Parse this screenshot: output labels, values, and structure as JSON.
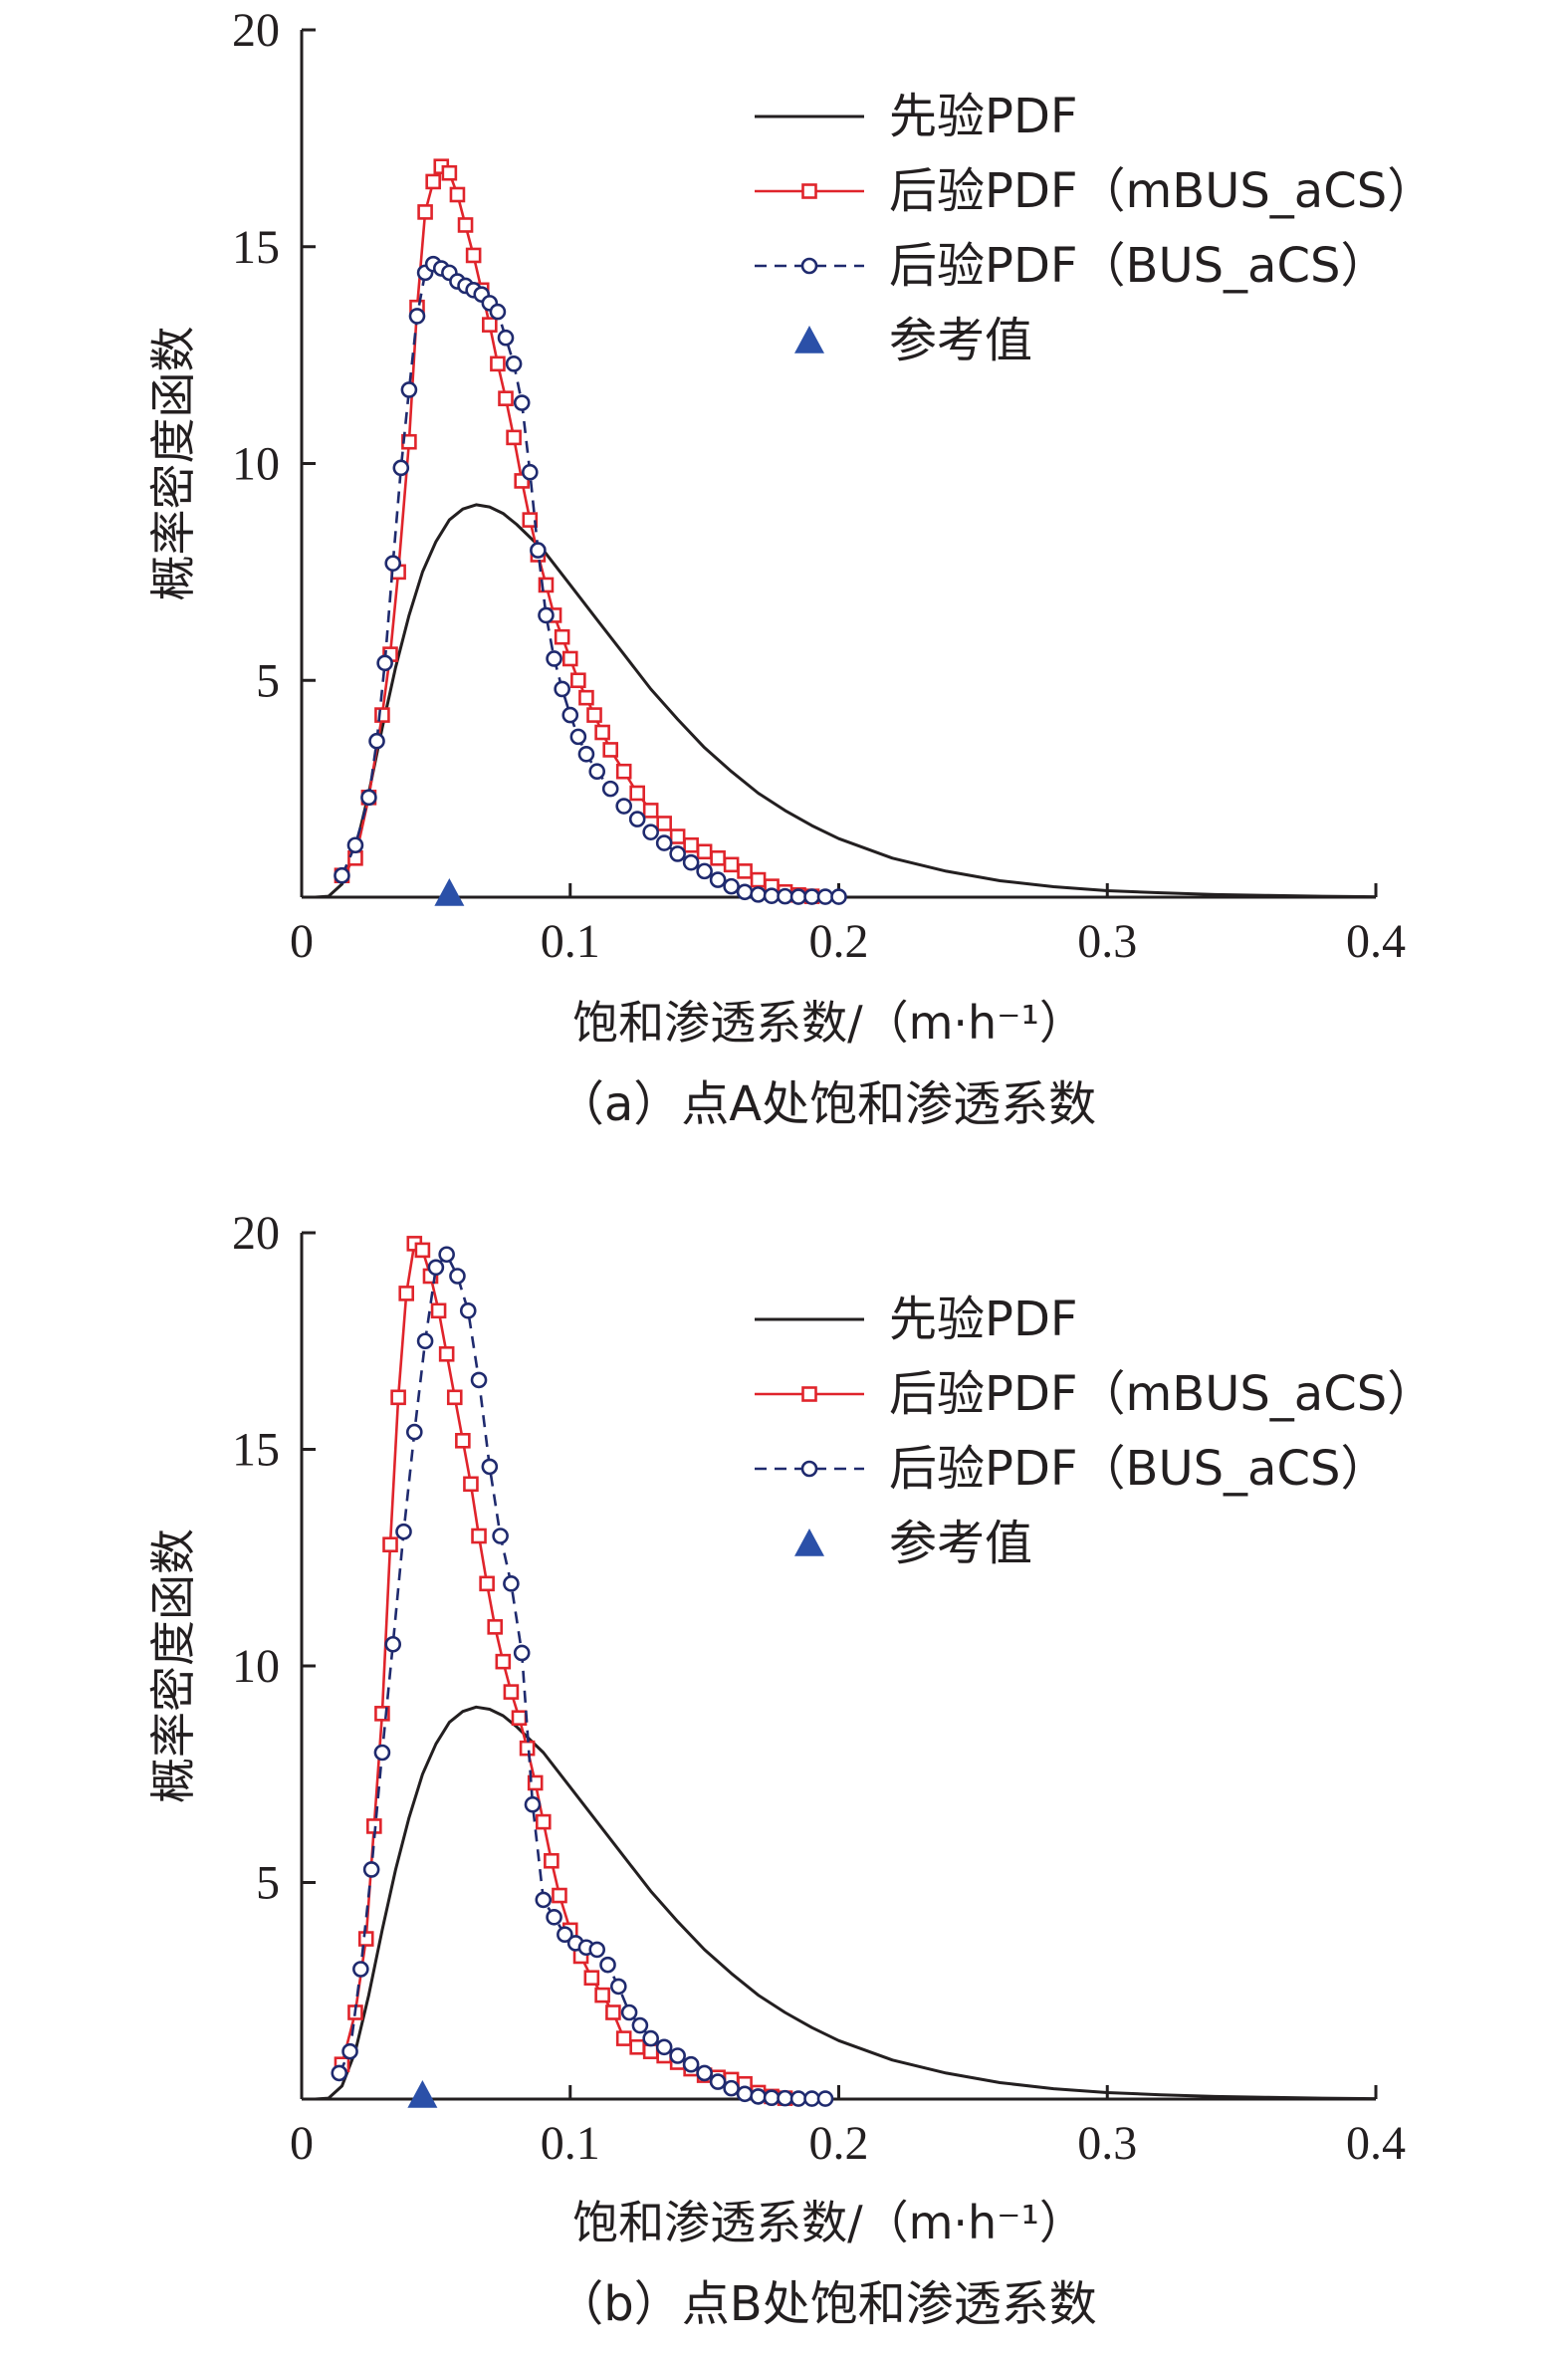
{
  "chart_data": [
    {
      "type": "line",
      "caption": "（a）点A处饱和渗透系数",
      "xlabel": "饱和渗透系数/（m·h⁻¹）",
      "ylabel": "概率密度函数",
      "xlim": [
        0,
        0.4
      ],
      "ylim": [
        0,
        20
      ],
      "xticks": [
        "0",
        "0.1",
        "0.2",
        "0.3",
        "0.4"
      ],
      "yticks": [
        "5",
        "10",
        "15",
        "20"
      ],
      "legend_position": "top-right",
      "series": [
        {
          "name": "先验PDF",
          "style": "solid",
          "color": "#231f20",
          "x": [
            0.005,
            0.01,
            0.015,
            0.02,
            0.025,
            0.03,
            0.035,
            0.04,
            0.045,
            0.05,
            0.055,
            0.06,
            0.065,
            0.07,
            0.075,
            0.08,
            0.09,
            0.1,
            0.11,
            0.12,
            0.13,
            0.14,
            0.15,
            0.16,
            0.17,
            0.18,
            0.19,
            0.2,
            0.22,
            0.24,
            0.26,
            0.28,
            0.3,
            0.32,
            0.34,
            0.36,
            0.38,
            0.4
          ],
          "y": [
            0,
            0.02,
            0.3,
            1.1,
            2.4,
            3.9,
            5.3,
            6.5,
            7.5,
            8.2,
            8.7,
            8.95,
            9.05,
            9.0,
            8.85,
            8.6,
            8.0,
            7.2,
            6.4,
            5.6,
            4.8,
            4.1,
            3.45,
            2.9,
            2.4,
            2.0,
            1.65,
            1.35,
            0.9,
            0.6,
            0.38,
            0.24,
            0.15,
            0.1,
            0.06,
            0.04,
            0.02,
            0.01
          ]
        },
        {
          "name": "后验PDF（mBUS_aCS）",
          "style": "solid-square",
          "color": "#e0242b",
          "x": [
            0.015,
            0.02,
            0.025,
            0.03,
            0.033,
            0.036,
            0.04,
            0.043,
            0.046,
            0.049,
            0.052,
            0.055,
            0.058,
            0.061,
            0.064,
            0.067,
            0.07,
            0.073,
            0.076,
            0.079,
            0.082,
            0.085,
            0.088,
            0.091,
            0.094,
            0.097,
            0.1,
            0.103,
            0.106,
            0.109,
            0.112,
            0.115,
            0.12,
            0.125,
            0.13,
            0.135,
            0.14,
            0.145,
            0.15,
            0.155,
            0.16,
            0.165,
            0.17,
            0.175,
            0.18,
            0.185,
            0.19
          ],
          "y": [
            0.5,
            0.9,
            2.3,
            4.2,
            5.6,
            7.5,
            10.5,
            13.6,
            15.8,
            16.5,
            16.85,
            16.7,
            16.2,
            15.5,
            14.8,
            14.0,
            13.2,
            12.3,
            11.5,
            10.6,
            9.6,
            8.7,
            7.9,
            7.2,
            6.5,
            6.0,
            5.5,
            5.0,
            4.6,
            4.2,
            3.8,
            3.4,
            2.9,
            2.4,
            2.0,
            1.7,
            1.4,
            1.2,
            1.05,
            0.9,
            0.75,
            0.6,
            0.4,
            0.25,
            0.12,
            0.05,
            0.02
          ]
        },
        {
          "name": "后验PDF（BUS_aCS）",
          "style": "dashed-circle",
          "color": "#1f2a6e",
          "x": [
            0.015,
            0.02,
            0.025,
            0.028,
            0.031,
            0.034,
            0.037,
            0.04,
            0.043,
            0.046,
            0.049,
            0.052,
            0.055,
            0.058,
            0.061,
            0.064,
            0.067,
            0.07,
            0.073,
            0.076,
            0.079,
            0.082,
            0.085,
            0.088,
            0.091,
            0.094,
            0.097,
            0.1,
            0.103,
            0.106,
            0.11,
            0.115,
            0.12,
            0.125,
            0.13,
            0.135,
            0.14,
            0.145,
            0.15,
            0.155,
            0.16,
            0.165,
            0.17,
            0.175,
            0.18,
            0.185,
            0.19,
            0.195,
            0.2
          ],
          "y": [
            0.5,
            1.2,
            2.3,
            3.6,
            5.4,
            7.7,
            9.9,
            11.7,
            13.4,
            14.4,
            14.6,
            14.5,
            14.4,
            14.2,
            14.1,
            14.0,
            13.9,
            13.7,
            13.5,
            12.9,
            12.3,
            11.4,
            9.8,
            8.0,
            6.5,
            5.5,
            4.8,
            4.2,
            3.7,
            3.3,
            2.9,
            2.5,
            2.1,
            1.8,
            1.5,
            1.25,
            1.0,
            0.8,
            0.6,
            0.4,
            0.25,
            0.12,
            0.06,
            0.03,
            0.02,
            0.01,
            0.01,
            0.01,
            0.01
          ]
        },
        {
          "name": "参考值",
          "style": "triangle",
          "color": "#2b50a8",
          "x": [
            0.055
          ],
          "y": [
            0
          ]
        }
      ]
    },
    {
      "type": "line",
      "caption": "（b）点B处饱和渗透系数",
      "xlabel": "饱和渗透系数/（m·h⁻¹）",
      "ylabel": "概率密度函数",
      "xlim": [
        0,
        0.4
      ],
      "ylim": [
        0,
        20
      ],
      "xticks": [
        "0",
        "0.1",
        "0.2",
        "0.3",
        "0.4"
      ],
      "yticks": [
        "5",
        "10",
        "15",
        "20"
      ],
      "legend_position": "top-right",
      "series": [
        {
          "name": "先验PDF",
          "style": "solid",
          "color": "#231f20",
          "x": [
            0.005,
            0.01,
            0.015,
            0.02,
            0.025,
            0.03,
            0.035,
            0.04,
            0.045,
            0.05,
            0.055,
            0.06,
            0.065,
            0.07,
            0.075,
            0.08,
            0.09,
            0.1,
            0.11,
            0.12,
            0.13,
            0.14,
            0.15,
            0.16,
            0.17,
            0.18,
            0.19,
            0.2,
            0.22,
            0.24,
            0.26,
            0.28,
            0.3,
            0.32,
            0.34,
            0.36,
            0.38,
            0.4
          ],
          "y": [
            0,
            0.02,
            0.3,
            1.1,
            2.4,
            3.9,
            5.3,
            6.5,
            7.5,
            8.2,
            8.7,
            8.95,
            9.05,
            9.0,
            8.85,
            8.6,
            8.0,
            7.2,
            6.4,
            5.6,
            4.8,
            4.1,
            3.45,
            2.9,
            2.4,
            2.0,
            1.65,
            1.35,
            0.9,
            0.6,
            0.38,
            0.24,
            0.15,
            0.1,
            0.06,
            0.04,
            0.02,
            0.01
          ]
        },
        {
          "name": "后验PDF（mBUS_aCS）",
          "style": "solid-square",
          "color": "#e0242b",
          "x": [
            0.015,
            0.02,
            0.024,
            0.027,
            0.03,
            0.033,
            0.036,
            0.039,
            0.042,
            0.045,
            0.048,
            0.051,
            0.054,
            0.057,
            0.06,
            0.063,
            0.066,
            0.069,
            0.072,
            0.075,
            0.078,
            0.081,
            0.084,
            0.087,
            0.09,
            0.093,
            0.096,
            0.1,
            0.104,
            0.108,
            0.112,
            0.116,
            0.12,
            0.125,
            0.13,
            0.135,
            0.14,
            0.145,
            0.15,
            0.155,
            0.16,
            0.165,
            0.17,
            0.175,
            0.18
          ],
          "y": [
            0.8,
            2.0,
            3.7,
            6.3,
            8.9,
            12.8,
            16.2,
            18.6,
            19.75,
            19.6,
            19.0,
            18.2,
            17.2,
            16.2,
            15.2,
            14.2,
            13.0,
            11.9,
            10.9,
            10.1,
            9.4,
            8.8,
            8.1,
            7.3,
            6.4,
            5.5,
            4.7,
            3.9,
            3.3,
            2.8,
            2.4,
            2.0,
            1.4,
            1.2,
            1.1,
            1.0,
            0.85,
            0.7,
            0.55,
            0.5,
            0.45,
            0.35,
            0.15,
            0.06,
            0.02
          ]
        },
        {
          "name": "后验PDF（BUS_aCS）",
          "style": "dashed-circle",
          "color": "#1f2a6e",
          "x": [
            0.014,
            0.018,
            0.022,
            0.026,
            0.03,
            0.034,
            0.038,
            0.042,
            0.046,
            0.05,
            0.054,
            0.058,
            0.062,
            0.066,
            0.07,
            0.074,
            0.078,
            0.082,
            0.086,
            0.09,
            0.094,
            0.098,
            0.102,
            0.106,
            0.11,
            0.114,
            0.118,
            0.122,
            0.126,
            0.13,
            0.135,
            0.14,
            0.145,
            0.15,
            0.155,
            0.16,
            0.165,
            0.17,
            0.175,
            0.18,
            0.185,
            0.19,
            0.195
          ],
          "y": [
            0.6,
            1.1,
            3.0,
            5.3,
            8.0,
            10.5,
            13.1,
            15.4,
            17.5,
            19.2,
            19.5,
            19.0,
            18.2,
            16.6,
            14.6,
            13.0,
            11.9,
            10.3,
            6.8,
            4.6,
            4.2,
            3.8,
            3.6,
            3.5,
            3.45,
            3.1,
            2.6,
            2.0,
            1.7,
            1.4,
            1.2,
            1.0,
            0.8,
            0.6,
            0.4,
            0.25,
            0.12,
            0.06,
            0.03,
            0.02,
            0.01,
            0.01,
            0.01
          ]
        },
        {
          "name": "参考值",
          "style": "triangle",
          "color": "#2b50a8",
          "x": [
            0.045
          ],
          "y": [
            0
          ]
        }
      ]
    }
  ]
}
